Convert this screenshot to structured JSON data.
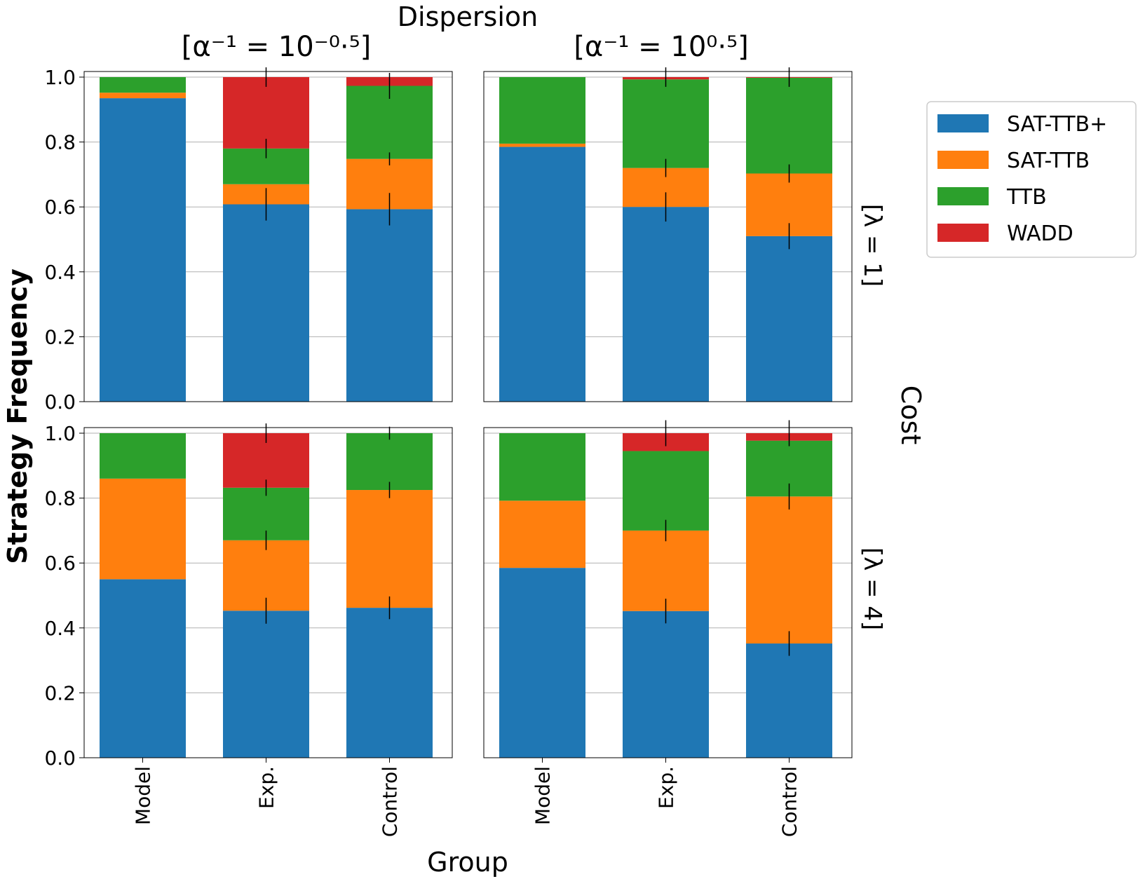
{
  "chart_data": {
    "type": "bar",
    "stacked": true,
    "super_title": "Dispersion",
    "side_title": "Cost",
    "xlabel": "Group",
    "ylabel": "Strategy Frequency",
    "ylim": [
      0,
      1.0
    ],
    "yticks": [
      "0.0",
      "0.2",
      "0.4",
      "0.6",
      "0.8",
      "1.0"
    ],
    "grid": "y-major",
    "legend_position": "right, outside",
    "categories": [
      "Model",
      "Exp.",
      "Control"
    ],
    "column_titles": [
      "[α⁻¹ = 10⁻⁰·⁵]",
      "[α⁻¹ = 10⁰·⁵]"
    ],
    "row_titles": [
      "[λ = 1]",
      "[λ = 4]"
    ],
    "series": [
      {
        "name": "SAT-TTB+",
        "color": "#1f77b4"
      },
      {
        "name": "SAT-TTB",
        "color": "#ff7f0e"
      },
      {
        "name": "TTB",
        "color": "#2ca02c"
      },
      {
        "name": "WADD",
        "color": "#d62728"
      }
    ],
    "panels": [
      {
        "row": 0,
        "col": 0,
        "stacks": [
          {
            "group": "Model",
            "values": [
              0.935,
              0.017,
              0.048,
              0.0
            ]
          },
          {
            "group": "Exp.",
            "values": [
              0.608,
              0.062,
              0.11,
              0.22
            ]
          },
          {
            "group": "Control",
            "values": [
              0.593,
              0.155,
              0.225,
              0.027
            ]
          }
        ],
        "error_bars": [
          [
            0.0,
            0.0,
            0.0,
            0.0
          ],
          [
            0.05,
            0.0,
            0.03,
            0.03
          ],
          [
            0.05,
            0.02,
            0.04,
            0.0
          ]
        ]
      },
      {
        "row": 0,
        "col": 1,
        "stacks": [
          {
            "group": "Model",
            "values": [
              0.785,
              0.01,
              0.205,
              0.0
            ]
          },
          {
            "group": "Exp.",
            "values": [
              0.6,
              0.12,
              0.273,
              0.007
            ]
          },
          {
            "group": "Control",
            "values": [
              0.51,
              0.193,
              0.295,
              0.002
            ]
          }
        ],
        "error_bars": [
          [
            0.0,
            0.0,
            0.0,
            0.0
          ],
          [
            0.045,
            0.028,
            0.0,
            0.03
          ],
          [
            0.04,
            0.028,
            0.0,
            0.03
          ]
        ]
      },
      {
        "row": 1,
        "col": 0,
        "stacks": [
          {
            "group": "Model",
            "values": [
              0.55,
              0.31,
              0.14,
              0.0
            ]
          },
          {
            "group": "Exp.",
            "values": [
              0.453,
              0.217,
              0.162,
              0.168
            ]
          },
          {
            "group": "Control",
            "values": [
              0.462,
              0.363,
              0.175,
              0.0
            ]
          }
        ],
        "error_bars": [
          [
            0.0,
            0.0,
            0.0,
            0.0
          ],
          [
            0.04,
            0.03,
            0.025,
            0.03
          ],
          [
            0.035,
            0.025,
            0.0,
            0.02
          ]
        ]
      },
      {
        "row": 1,
        "col": 1,
        "stacks": [
          {
            "group": "Model",
            "values": [
              0.585,
              0.207,
              0.208,
              0.0
            ]
          },
          {
            "group": "Exp.",
            "values": [
              0.452,
              0.248,
              0.245,
              0.055
            ]
          },
          {
            "group": "Control",
            "values": [
              0.352,
              0.453,
              0.172,
              0.023
            ]
          }
        ],
        "error_bars": [
          [
            0.0,
            0.0,
            0.0,
            0.0
          ],
          [
            0.038,
            0.033,
            0.0,
            0.04
          ],
          [
            0.038,
            0.04,
            0.0,
            0.04
          ]
        ]
      }
    ]
  }
}
